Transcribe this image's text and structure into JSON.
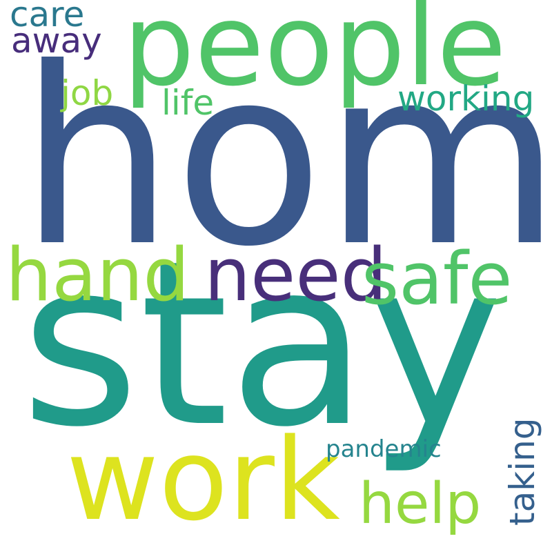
{
  "words": {
    "home": {
      "text": "home",
      "color": "#3a588c"
    },
    "stay": {
      "text": "stay",
      "color": "#209b8a"
    },
    "people": {
      "text": "people",
      "color": "#50c468"
    },
    "work": {
      "text": "work",
      "color": "#dde31f"
    },
    "safe": {
      "text": "safe",
      "color": "#50c468"
    },
    "hand": {
      "text": "hand",
      "color": "#95d840"
    },
    "need": {
      "text": "need",
      "color": "#482f7a"
    },
    "help": {
      "text": "help",
      "color": "#95d840"
    },
    "working": {
      "text": "working",
      "color": "#22a884"
    },
    "life": {
      "text": "life",
      "color": "#50c468"
    },
    "job": {
      "text": "job",
      "color": "#8fd744"
    },
    "care": {
      "text": "care",
      "color": "#2a788e"
    },
    "away": {
      "text": "away",
      "color": "#472d7b"
    },
    "pandemic": {
      "text": "pandemic",
      "color": "#25848e"
    },
    "taking": {
      "text": "taking",
      "color": "#35608d"
    }
  }
}
